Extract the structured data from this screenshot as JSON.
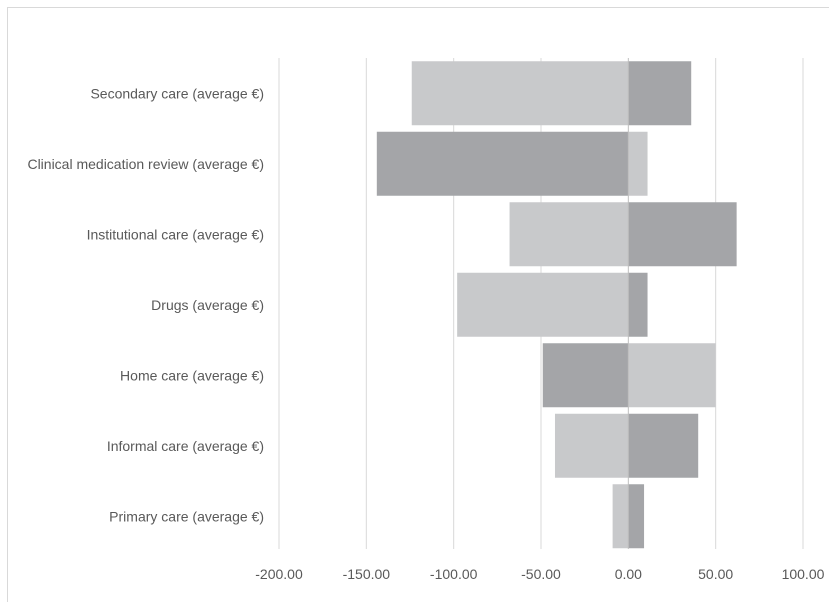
{
  "chart_data": {
    "type": "bar",
    "orientation": "horizontal",
    "categories": [
      "Secondary care (average €)",
      "Clinical medication review (average €)",
      "Institutional care (average €)",
      "Drugs (average €)",
      "Home care (average €)",
      "Informal care (average €)",
      "Primary care (average €)"
    ],
    "series": [
      {
        "values": [
          -124,
          -144,
          -68,
          -98,
          -49,
          -42,
          -9
        ]
      },
      {
        "values": [
          36,
          11,
          62,
          11,
          50,
          40,
          9
        ]
      }
    ],
    "bar_colors": [
      [
        "#c8c9cb",
        "#a4a5a8"
      ],
      [
        "#a4a5a8",
        "#c8c9cb"
      ],
      [
        "#c8c9cb",
        "#a4a5a8"
      ],
      [
        "#c8c9cb",
        "#a4a5a8"
      ],
      [
        "#a4a5a8",
        "#c8c9cb"
      ],
      [
        "#c8c9cb",
        "#a4a5a8"
      ],
      [
        "#c8c9cb",
        "#a4a5a8"
      ]
    ],
    "x_ticks": [
      "-200.00",
      "-150.00",
      "-100.00",
      "-50.00",
      "0.00",
      "50.00",
      "100.00"
    ],
    "x_tick_values": [
      -200,
      -150,
      -100,
      -50,
      0,
      50,
      100
    ],
    "xlim": [
      -200,
      100
    ],
    "grid": true,
    "gridline_color": "#d9d9d9",
    "zero_line_color": "#bfbfbf",
    "legend": "none",
    "title": "",
    "xlabel": "",
    "ylabel": ""
  }
}
